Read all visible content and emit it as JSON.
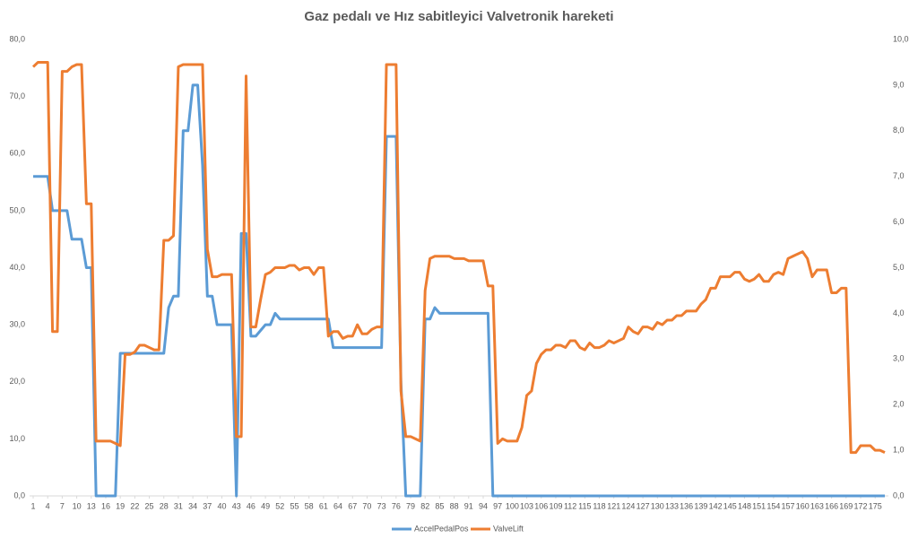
{
  "chart_data": {
    "type": "line",
    "title": "Gaz pedalı ve Hız sabitleyici Valvetronik hareketi",
    "x": [
      1,
      2,
      3,
      4,
      5,
      6,
      7,
      8,
      9,
      10,
      11,
      12,
      13,
      14,
      15,
      16,
      17,
      18,
      19,
      20,
      21,
      22,
      23,
      24,
      25,
      26,
      27,
      28,
      29,
      30,
      31,
      32,
      33,
      34,
      35,
      36,
      37,
      38,
      39,
      40,
      41,
      42,
      43,
      44,
      45,
      46,
      47,
      48,
      49,
      50,
      51,
      52,
      53,
      54,
      55,
      56,
      57,
      58,
      59,
      60,
      61,
      62,
      63,
      64,
      65,
      66,
      67,
      68,
      69,
      70,
      71,
      72,
      73,
      74,
      75,
      76,
      77,
      78,
      79,
      80,
      81,
      82,
      83,
      84,
      85,
      86,
      87,
      88,
      89,
      90,
      91,
      92,
      93,
      94,
      95,
      96,
      97,
      98,
      99,
      100,
      101,
      102,
      103,
      104,
      105,
      106,
      107,
      108,
      109,
      110,
      111,
      112,
      113,
      114,
      115,
      116,
      117,
      118,
      119,
      120,
      121,
      122,
      123,
      124,
      125,
      126,
      127,
      128,
      129,
      130,
      131,
      132,
      133,
      134,
      135,
      136,
      137,
      138,
      139,
      140,
      141,
      142,
      143,
      144,
      145,
      146,
      147,
      148,
      149,
      150,
      151,
      152,
      153,
      154,
      155,
      156,
      157,
      158,
      159,
      160,
      161,
      162,
      163,
      164,
      165,
      166,
      167,
      168,
      169,
      170,
      171,
      172,
      173,
      174,
      175,
      176,
      177
    ],
    "xlim": [
      1,
      177
    ],
    "xticks": [
      1,
      4,
      7,
      10,
      13,
      16,
      19,
      22,
      25,
      28,
      31,
      34,
      37,
      40,
      43,
      46,
      49,
      52,
      55,
      58,
      61,
      64,
      67,
      70,
      73,
      76,
      79,
      82,
      85,
      88,
      91,
      94,
      97,
      100,
      103,
      106,
      109,
      112,
      115,
      118,
      121,
      124,
      127,
      130,
      133,
      136,
      139,
      142,
      145,
      148,
      151,
      154,
      157,
      160,
      163,
      166,
      169,
      172,
      175
    ],
    "ylim": [
      0,
      80
    ],
    "yticks": [
      {
        "value": 0,
        "label": "0,0"
      },
      {
        "value": 10,
        "label": "10,0"
      },
      {
        "value": 20,
        "label": "20,0"
      },
      {
        "value": 30,
        "label": "30,0"
      },
      {
        "value": 40,
        "label": "40,0"
      },
      {
        "value": 50,
        "label": "50,0"
      },
      {
        "value": 60,
        "label": "60,0"
      },
      {
        "value": 70,
        "label": "70,0"
      },
      {
        "value": 80,
        "label": "80,0"
      }
    ],
    "y2lim": [
      0,
      10
    ],
    "y2ticks": [
      {
        "value": 0,
        "label": "0,0"
      },
      {
        "value": 1,
        "label": "1,0"
      },
      {
        "value": 2,
        "label": "2,0"
      },
      {
        "value": 3,
        "label": "3,0"
      },
      {
        "value": 4,
        "label": "4,0"
      },
      {
        "value": 5,
        "label": "5,0"
      },
      {
        "value": 6,
        "label": "6,0"
      },
      {
        "value": 7,
        "label": "7,0"
      },
      {
        "value": 8,
        "label": "8,0"
      },
      {
        "value": 9,
        "label": "9,0"
      },
      {
        "value": 10,
        "label": "10,0"
      }
    ],
    "legend": "bottom",
    "series": [
      {
        "name": "AccelPedalPos",
        "color": "#5b9bd5",
        "axis": "y",
        "values": [
          56,
          56,
          56,
          56,
          50,
          50,
          50,
          50,
          45,
          45,
          45,
          40,
          40,
          0,
          0,
          0,
          0,
          0,
          25,
          25,
          25,
          25,
          25,
          25,
          25,
          25,
          25,
          25,
          33,
          35,
          35,
          64,
          64,
          72,
          72,
          58,
          35,
          35,
          30,
          30,
          30,
          30,
          0,
          46,
          46,
          28,
          28,
          29,
          30,
          30,
          32,
          31,
          31,
          31,
          31,
          31,
          31,
          31,
          31,
          31,
          31,
          31,
          26,
          26,
          26,
          26,
          26,
          26,
          26,
          26,
          26,
          26,
          26,
          63,
          63,
          63,
          20,
          0,
          0,
          0,
          0,
          31,
          31,
          33,
          32,
          32,
          32,
          32,
          32,
          32,
          32,
          32,
          32,
          32,
          32,
          0,
          0,
          0,
          0,
          0,
          0,
          0,
          0,
          0,
          0,
          0,
          0,
          0,
          0,
          0,
          0,
          0,
          0,
          0,
          0,
          0,
          0,
          0,
          0,
          0,
          0,
          0,
          0,
          0,
          0,
          0,
          0,
          0,
          0,
          0,
          0,
          0,
          0,
          0,
          0,
          0,
          0,
          0,
          0,
          0,
          0,
          0,
          0,
          0,
          0,
          0,
          0,
          0,
          0,
          0,
          0,
          0,
          0,
          0,
          0,
          0,
          0,
          0,
          0,
          0,
          0,
          0,
          0,
          0,
          0,
          0,
          0,
          0,
          0,
          0,
          0,
          0,
          0,
          0,
          0,
          0,
          0
        ]
      },
      {
        "name": "ValveLift",
        "color": "#ed7d31",
        "axis": "y2",
        "values": [
          9.4,
          9.5,
          9.5,
          9.5,
          3.6,
          3.6,
          9.3,
          9.3,
          9.4,
          9.45,
          9.45,
          6.4,
          6.4,
          1.2,
          1.2,
          1.2,
          1.2,
          1.15,
          1.1,
          3.1,
          3.1,
          3.15,
          3.3,
          3.3,
          3.25,
          3.2,
          3.2,
          5.6,
          5.6,
          5.7,
          9.4,
          9.45,
          9.45,
          9.45,
          9.45,
          9.45,
          5.4,
          4.8,
          4.8,
          4.85,
          4.85,
          4.85,
          1.3,
          1.3,
          9.2,
          3.7,
          3.7,
          4.3,
          4.85,
          4.9,
          5.0,
          5.0,
          5.0,
          5.05,
          5.05,
          4.95,
          5.0,
          5.0,
          4.85,
          5.0,
          5.0,
          3.5,
          3.6,
          3.6,
          3.45,
          3.5,
          3.5,
          3.75,
          3.55,
          3.55,
          3.65,
          3.7,
          3.7,
          9.45,
          9.45,
          9.45,
          2.3,
          1.3,
          1.3,
          1.25,
          1.2,
          4.5,
          5.2,
          5.25,
          5.25,
          5.25,
          5.25,
          5.2,
          5.2,
          5.2,
          5.15,
          5.15,
          5.15,
          5.15,
          4.6,
          4.6,
          1.15,
          1.25,
          1.2,
          1.2,
          1.2,
          1.5,
          2.2,
          2.3,
          2.9,
          3.1,
          3.2,
          3.2,
          3.3,
          3.3,
          3.25,
          3.4,
          3.4,
          3.25,
          3.2,
          3.35,
          3.25,
          3.25,
          3.3,
          3.4,
          3.35,
          3.4,
          3.45,
          3.7,
          3.6,
          3.55,
          3.7,
          3.7,
          3.65,
          3.8,
          3.75,
          3.85,
          3.85,
          3.95,
          3.95,
          4.05,
          4.05,
          4.05,
          4.2,
          4.3,
          4.55,
          4.55,
          4.8,
          4.8,
          4.8,
          4.9,
          4.9,
          4.75,
          4.7,
          4.75,
          4.85,
          4.7,
          4.7,
          4.85,
          4.9,
          4.85,
          5.2,
          5.25,
          5.3,
          5.35,
          5.2,
          4.8,
          4.95,
          4.95,
          4.95,
          4.45,
          4.45,
          4.55,
          4.55,
          0.95,
          0.95,
          1.1,
          1.1,
          1.1,
          1.0,
          1.0,
          0.95
        ]
      }
    ]
  }
}
